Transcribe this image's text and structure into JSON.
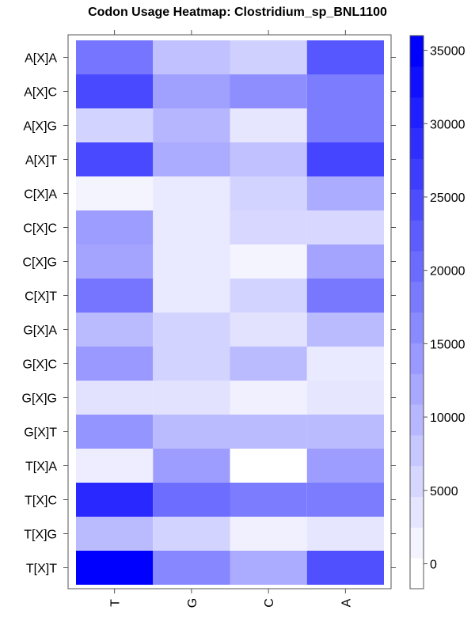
{
  "chart_data": {
    "type": "heatmap",
    "title": "Codon Usage Heatmap: Clostridium_sp_BNL1100",
    "xlabel": "",
    "ylabel": "",
    "x_categories": [
      "T",
      "G",
      "C",
      "A"
    ],
    "y_categories": [
      "A[X]A",
      "A[X]C",
      "A[X]G",
      "A[X]T",
      "C[X]A",
      "C[X]C",
      "C[X]G",
      "C[X]T",
      "G[X]A",
      "G[X]C",
      "G[X]G",
      "G[X]T",
      "T[X]A",
      "T[X]C",
      "T[X]G",
      "T[X]T"
    ],
    "values": [
      [
        19000,
        8500,
        6500,
        23000
      ],
      [
        25000,
        13000,
        15500,
        18000
      ],
      [
        6000,
        10000,
        3500,
        18000
      ],
      [
        25000,
        11500,
        8500,
        25500
      ],
      [
        1500,
        3000,
        6000,
        11500
      ],
      [
        13500,
        3000,
        5500,
        5500
      ],
      [
        12500,
        3000,
        1500,
        12500
      ],
      [
        19000,
        3000,
        6000,
        18500
      ],
      [
        9500,
        6000,
        4000,
        9500
      ],
      [
        14000,
        6000,
        9500,
        3000
      ],
      [
        4000,
        4000,
        2000,
        3500
      ],
      [
        14500,
        9500,
        9500,
        9500
      ],
      [
        2500,
        13500,
        0,
        13500
      ],
      [
        29500,
        20000,
        18000,
        18000
      ],
      [
        9500,
        6000,
        2000,
        3500
      ],
      [
        35000,
        16500,
        11500,
        24000
      ]
    ],
    "colorbar": {
      "min": 0,
      "max": 35000,
      "ticks": [
        "0",
        "5000",
        "10000",
        "15000",
        "20000",
        "25000",
        "30000",
        "35000"
      ],
      "low_color": "#ffffff",
      "high_color": "#0000ff"
    },
    "grid": false,
    "legend_position": "right"
  }
}
